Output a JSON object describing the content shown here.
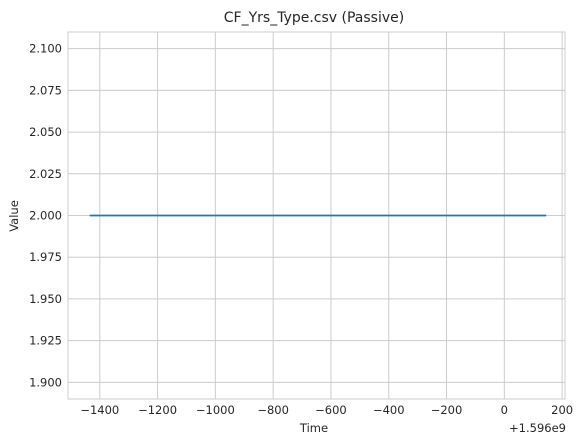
{
  "chart_data": {
    "type": "line",
    "title": "CF_Yrs_Type.csv (Passive)",
    "xlabel": "Time",
    "ylabel": "Value",
    "x_offset_label": "+1.596e9",
    "x_offset": 1596000000,
    "xlim": [
      -1510,
      210
    ],
    "ylim": [
      1.89,
      2.11
    ],
    "xticks": [
      -1400,
      -1200,
      -1000,
      -800,
      -600,
      -400,
      -200,
      0,
      200
    ],
    "xtick_labels": [
      "−1400",
      "−1200",
      "−1000",
      "−800",
      "−600",
      "−400",
      "−200",
      "0",
      "200"
    ],
    "yticks": [
      1.9,
      1.925,
      1.95,
      1.975,
      2.0,
      2.025,
      2.05,
      2.075,
      2.1
    ],
    "ytick_labels": [
      "1.900",
      "1.925",
      "1.950",
      "1.975",
      "2.000",
      "2.025",
      "2.050",
      "2.075",
      "2.100"
    ],
    "grid": true,
    "series": [
      {
        "color": "#1f77b4",
        "x": [
          -1435,
          145
        ],
        "y": [
          2.0,
          2.0
        ]
      }
    ]
  }
}
